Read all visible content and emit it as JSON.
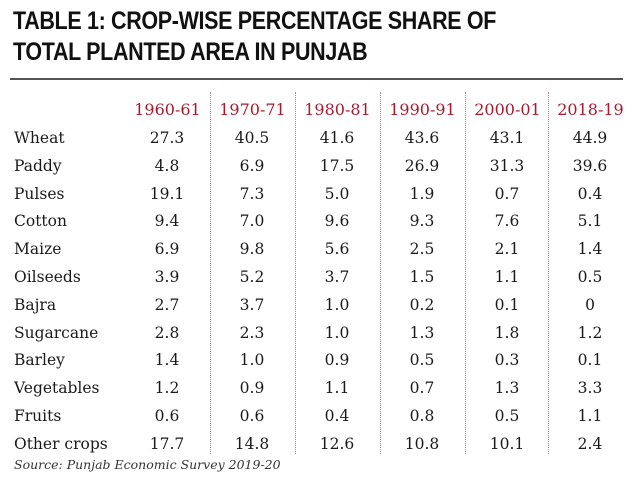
{
  "title_line1": "TABLE 1: CROP-WISE PERCENTAGE SHARE OF",
  "title_line2": "TOTAL PLANTED AREA IN PUNJAB",
  "source": "Source: Punjab Economic Survey 2019-20",
  "colors": {
    "year_header": "#a31b2f",
    "divider": "#c47a86",
    "text": "#1a1a1a"
  },
  "chart_data": {
    "type": "table",
    "columns": [
      "1960-61",
      "1970-71",
      "1980-81",
      "1990-91",
      "2000-01",
      "2018-19"
    ],
    "rows": [
      {
        "crop": "Wheat",
        "values": [
          "27.3",
          "40.5",
          "41.6",
          "43.6",
          "43.1",
          "44.9"
        ]
      },
      {
        "crop": "Paddy",
        "values": [
          "4.8",
          "6.9",
          "17.5",
          "26.9",
          "31.3",
          "39.6"
        ]
      },
      {
        "crop": "Pulses",
        "values": [
          "19.1",
          "7.3",
          "5.0",
          "1.9",
          "0.7",
          "0.4"
        ]
      },
      {
        "crop": "Cotton",
        "values": [
          "9.4",
          "7.0",
          "9.6",
          "9.3",
          "7.6",
          "5.1"
        ]
      },
      {
        "crop": "Maize",
        "values": [
          "6.9",
          "9.8",
          "5.6",
          "2.5",
          "2.1",
          "1.4"
        ]
      },
      {
        "crop": "Oilseeds",
        "values": [
          "3.9",
          "5.2",
          "3.7",
          "1.5",
          "1.1",
          "0.5"
        ]
      },
      {
        "crop": "Bajra",
        "values": [
          "2.7",
          "3.7",
          "1.0",
          "0.2",
          "0.1",
          "0"
        ]
      },
      {
        "crop": "Sugarcane",
        "values": [
          "2.8",
          "2.3",
          "1.0",
          "1.3",
          "1.8",
          "1.2"
        ]
      },
      {
        "crop": "Barley",
        "values": [
          "1.4",
          "1.0",
          "0.9",
          "0.5",
          "0.3",
          "0.1"
        ]
      },
      {
        "crop": "Vegetables",
        "values": [
          "1.2",
          "0.9",
          "1.1",
          "0.7",
          "1.3",
          "3.3"
        ]
      },
      {
        "crop": "Fruits",
        "values": [
          "0.6",
          "0.6",
          "0.4",
          "0.8",
          "0.5",
          "1.1"
        ]
      },
      {
        "crop": "Other crops",
        "values": [
          "17.7",
          "14.8",
          "12.6",
          "10.8",
          "10.1",
          "2.4"
        ]
      }
    ]
  }
}
